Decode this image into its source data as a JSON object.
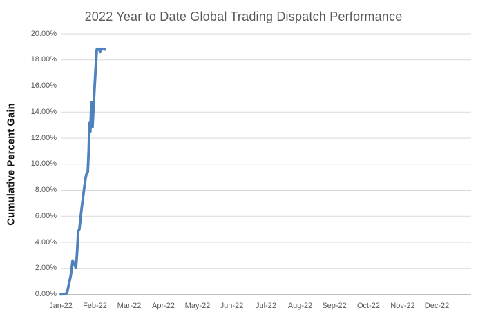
{
  "chart": {
    "title": "2022 Year to Date Global Trading Dispatch Performance",
    "ylabel": "Cumulative Percent Gain"
  },
  "chart_data": {
    "type": "line",
    "title": "2022 Year to Date Global Trading Dispatch Performance",
    "xlabel": "",
    "ylabel": "Cumulative Percent Gain",
    "legend": "none",
    "grid": "horizontal-only",
    "background": "#ffffff",
    "x_tick_labels": [
      "Jan-22",
      "Feb-22",
      "Mar-22",
      "Apr-22",
      "May-22",
      "Jun-22",
      "Jul-22",
      "Aug-22",
      "Sep-22",
      "Oct-22",
      "Nov-22",
      "Dec-22"
    ],
    "y_tick_labels": [
      "0.00%",
      "2.00%",
      "4.00%",
      "6.00%",
      "8.00%",
      "10.00%",
      "12.00%",
      "14.00%",
      "16.00%",
      "18.00%",
      "20.00%"
    ],
    "y_tick_values": [
      0,
      2,
      4,
      6,
      8,
      10,
      12,
      14,
      16,
      18,
      20
    ],
    "ylim": [
      0,
      20
    ],
    "x_axis_unit": "days since Jan 1 2022",
    "x_range_days": 365,
    "colors": {
      "line": "#4f81bd",
      "grid": "#d9d9d9",
      "axis": "#bfbfbf",
      "tick_text": "#595959",
      "title_text": "#595959",
      "axis_title_text": "#141414"
    },
    "series": [
      {
        "name": "Cumulative Percent Gain",
        "color": "#4f81bd",
        "points": [
          [
            0,
            0.0
          ],
          [
            4,
            0.05
          ],
          [
            5.5,
            0.1
          ],
          [
            7,
            0.7
          ],
          [
            9,
            1.5
          ],
          [
            10.5,
            2.6
          ],
          [
            12,
            2.3
          ],
          [
            13.5,
            2.05
          ],
          [
            14.5,
            3.2
          ],
          [
            15.5,
            4.85
          ],
          [
            16.5,
            5.0
          ],
          [
            18,
            6.2
          ],
          [
            20,
            7.6
          ],
          [
            22,
            8.9
          ],
          [
            23,
            9.3
          ],
          [
            24,
            9.4
          ],
          [
            24.8,
            11.0
          ],
          [
            25.5,
            13.2
          ],
          [
            26.3,
            12.5
          ],
          [
            27.2,
            14.75
          ],
          [
            28.2,
            12.85
          ],
          [
            29.5,
            15.0
          ],
          [
            31,
            17.3
          ],
          [
            32,
            18.8
          ],
          [
            34,
            18.85
          ],
          [
            35,
            18.6
          ],
          [
            36,
            18.85
          ],
          [
            39,
            18.8
          ]
        ]
      }
    ]
  }
}
